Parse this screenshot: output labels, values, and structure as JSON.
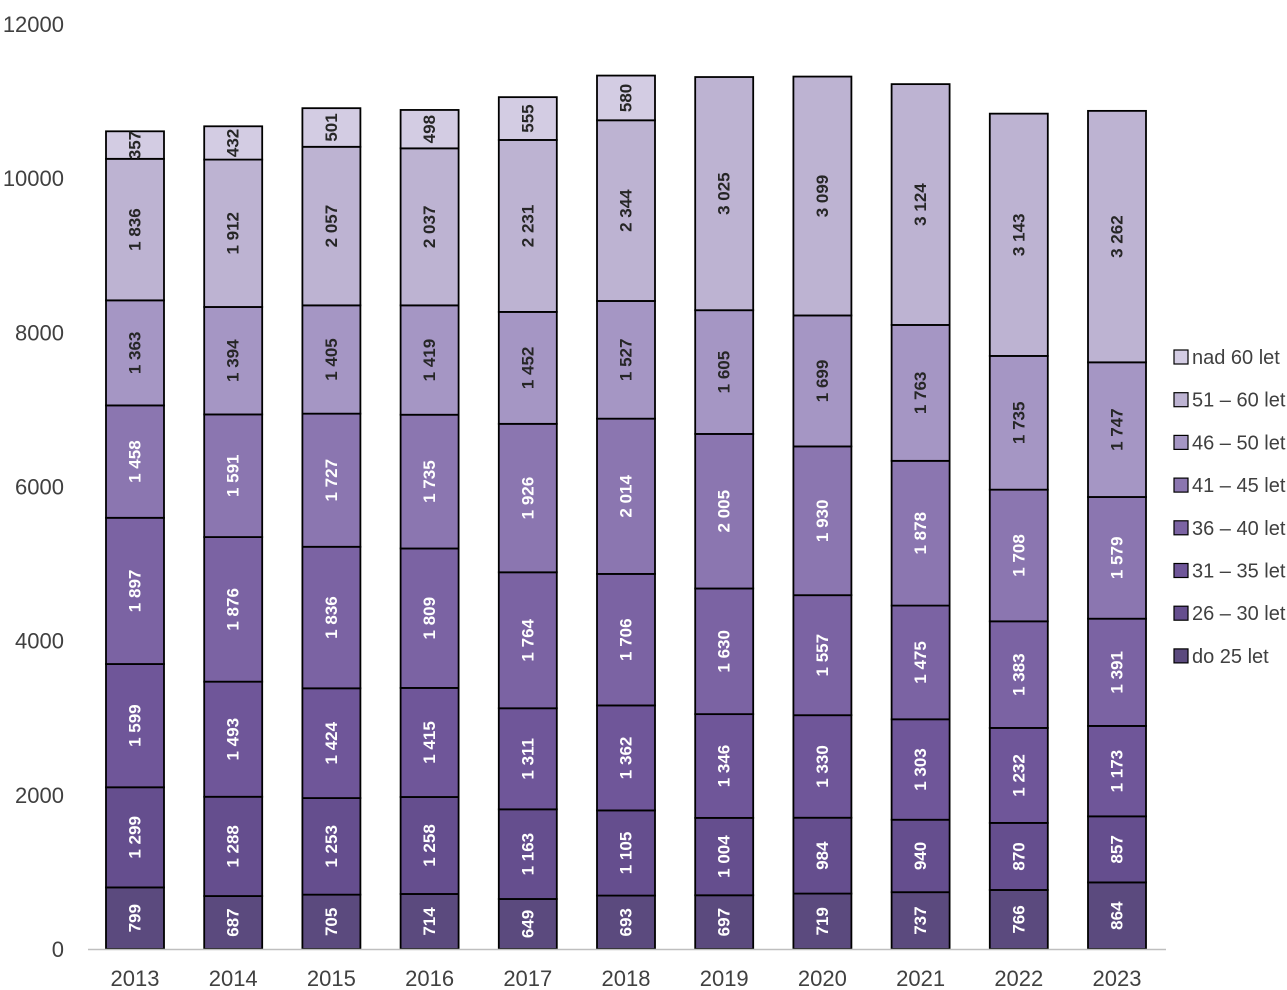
{
  "chart_data": {
    "type": "bar",
    "stacked": true,
    "orientation": "vertical",
    "categories": [
      "2013",
      "2014",
      "2015",
      "2016",
      "2017",
      "2018",
      "2019",
      "2020",
      "2021",
      "2022",
      "2023"
    ],
    "ylim": [
      0,
      12000
    ],
    "yticks": [
      0,
      2000,
      4000,
      6000,
      8000,
      10000,
      12000
    ],
    "ytick_labels": [
      "0",
      "2000",
      "4000",
      "6000",
      "8000",
      "10000",
      "12000"
    ],
    "grid": false,
    "legend_position": "right",
    "series": [
      {
        "name": "do 25 let",
        "color": "#5b4a7e",
        "values": [
          799,
          687,
          705,
          714,
          649,
          693,
          697,
          719,
          737,
          766,
          864
        ],
        "labels": [
          "799",
          "687",
          "705",
          "714",
          "649",
          "693",
          "697",
          "719",
          "737",
          "766",
          "864"
        ]
      },
      {
        "name": "26 – 30 let",
        "color": "#654e8e",
        "values": [
          1299,
          1288,
          1253,
          1258,
          1163,
          1105,
          1004,
          984,
          940,
          870,
          857
        ],
        "labels": [
          "1 299",
          "1 288",
          "1 253",
          "1 258",
          "1 163",
          "1 105",
          "1 004",
          "984",
          "940",
          "870",
          "857"
        ]
      },
      {
        "name": "31 – 35 let",
        "color": "#6f5699",
        "values": [
          1599,
          1493,
          1424,
          1415,
          1311,
          1362,
          1346,
          1330,
          1303,
          1232,
          1173
        ],
        "labels": [
          "1 599",
          "1 493",
          "1 424",
          "1 415",
          "1 311",
          "1 362",
          "1 346",
          "1 330",
          "1 303",
          "1 232",
          "1 173"
        ]
      },
      {
        "name": "36 – 40 let",
        "color": "#7b63a3",
        "values": [
          1897,
          1876,
          1836,
          1809,
          1764,
          1706,
          1630,
          1557,
          1475,
          1383,
          1391
        ],
        "labels": [
          "1 897",
          "1 876",
          "1 836",
          "1 809",
          "1 764",
          "1 706",
          "1 630",
          "1 557",
          "1 475",
          "1 383",
          "1 391"
        ]
      },
      {
        "name": "41 – 45 let",
        "color": "#8b76b0",
        "values": [
          1458,
          1591,
          1727,
          1735,
          1926,
          2014,
          2005,
          1930,
          1878,
          1708,
          1579
        ],
        "labels": [
          "1 458",
          "1 591",
          "1 727",
          "1 735",
          "1 926",
          "2 014",
          "2 005",
          "1 930",
          "1 878",
          "1 708",
          "1 579"
        ]
      },
      {
        "name": "46 – 50 let",
        "color": "#a596c4",
        "values": [
          1363,
          1394,
          1405,
          1419,
          1452,
          1527,
          1605,
          1699,
          1763,
          1735,
          1747
        ],
        "labels": [
          "1 363",
          "1 394",
          "1 405",
          "1 419",
          "1 452",
          "1 527",
          "1 605",
          "1 699",
          "1 763",
          "1 735",
          "1 747"
        ]
      },
      {
        "name": "51 – 60 let",
        "color": "#bdb3d2",
        "values": [
          1836,
          1912,
          2057,
          2037,
          2231,
          2344,
          3025,
          3099,
          3124,
          3143,
          3262
        ],
        "labels": [
          "1 836",
          "1 912",
          "2 057",
          "2 037",
          "2 231",
          "2 344",
          "3 025",
          "3 099",
          "3 124",
          "3 143",
          "3 262"
        ]
      },
      {
        "name": "nad 60 let",
        "color": "#d3cce3",
        "values": [
          357,
          432,
          501,
          498,
          555,
          580,
          0,
          0,
          0,
          0,
          0
        ],
        "labels": [
          "357",
          "432",
          "501",
          "498",
          "555",
          "580",
          "",
          "",
          "",
          "",
          ""
        ]
      }
    ]
  }
}
